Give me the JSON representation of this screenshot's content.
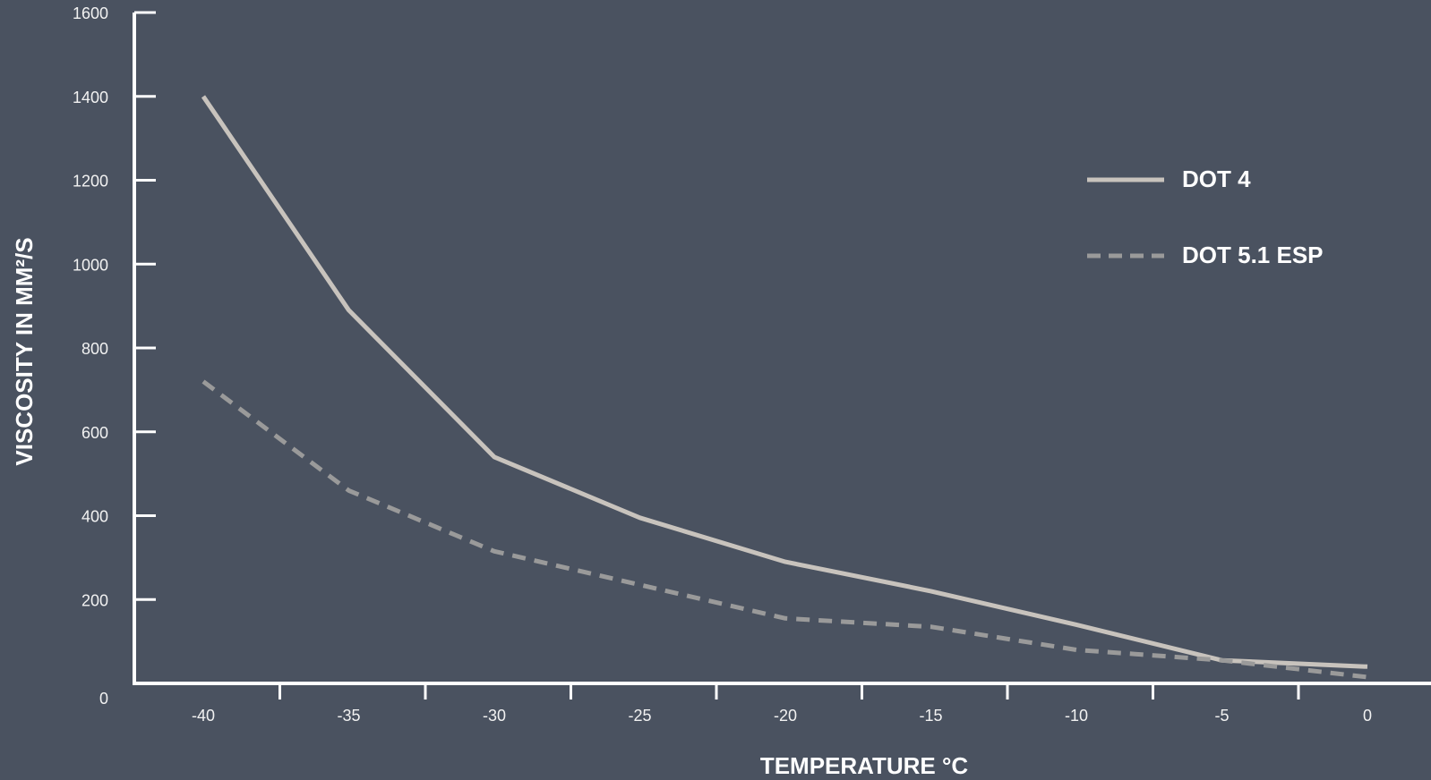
{
  "chart_data": {
    "type": "line",
    "title": "",
    "xlabel": "TEMPERATURE °C",
    "ylabel": "VISCOSITY IN MM²/S",
    "x": [
      -40,
      -35,
      -30,
      -25,
      -20,
      -15,
      -10,
      -5,
      0
    ],
    "x_ticks": [
      "-40",
      "-35",
      "-30",
      "-25",
      "-20",
      "-15",
      "-10",
      "-5",
      "0"
    ],
    "y_ticks": [
      "0",
      "200",
      "400",
      "600",
      "800",
      "1000",
      "1200",
      "1400",
      "1600"
    ],
    "xlim": [
      -42.5,
      2
    ],
    "ylim": [
      0,
      1600
    ],
    "grid": false,
    "legend_position": "top-right",
    "series": [
      {
        "name": "DOT 4",
        "style": "solid",
        "color": "#c8c3bd",
        "values": [
          1400,
          890,
          540,
          395,
          290,
          220,
          140,
          55,
          40
        ]
      },
      {
        "name": "DOT 5.1 ESP",
        "style": "dashed",
        "color": "#9a9a9a",
        "values": [
          720,
          460,
          315,
          235,
          155,
          135,
          80,
          55,
          15
        ]
      }
    ]
  },
  "colors": {
    "background": "#4a5260",
    "axis": "#ffffff"
  }
}
